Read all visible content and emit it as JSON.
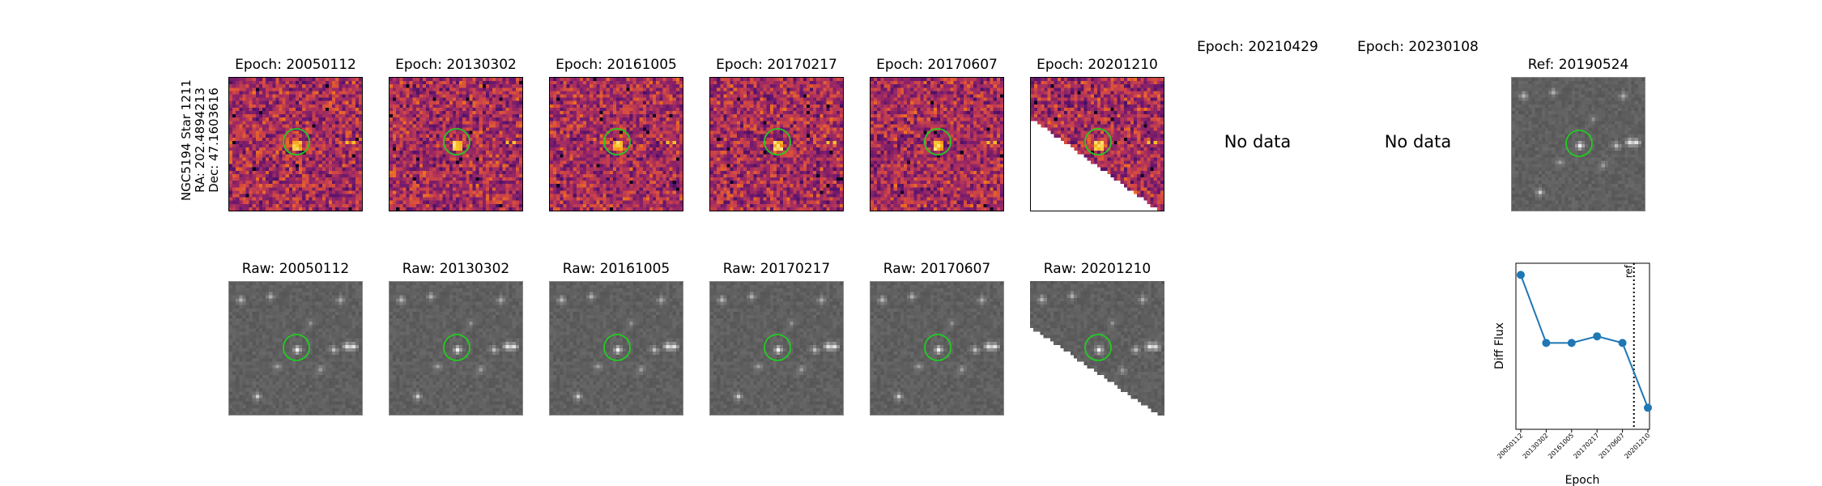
{
  "star": {
    "line1": "NGC5194 Star 1211",
    "line2": "RA: 202.4894213",
    "line3": "Dec: 47.1603616"
  },
  "diff_titles": [
    "Epoch: 20050112",
    "Epoch: 20130302",
    "Epoch: 20161005",
    "Epoch: 20170217",
    "Epoch: 20170607",
    "Epoch: 20201210",
    "Epoch: 20210429",
    "Epoch: 20230108"
  ],
  "raw_titles": [
    "Raw: 20050112",
    "Raw: 20130302",
    "Raw: 20161005",
    "Raw: 20170217",
    "Raw: 20170607",
    "Raw: 20201210"
  ],
  "ref_title": "Ref: 20190524",
  "no_data_text": "No data",
  "colors": {
    "circle": "#22cc22",
    "line": "#1f77b4",
    "diff_cmap": "magma",
    "raw_cmap": "gray"
  },
  "chart_data": {
    "type": "line",
    "xlabel": "Epoch",
    "ylabel": "Diff Flux",
    "categories": [
      "20050112",
      "20130302",
      "20161005",
      "20170217",
      "20170607",
      "20201210"
    ],
    "values": [
      0.93,
      0.52,
      0.52,
      0.56,
      0.52,
      0.13
    ],
    "ylim": [
      0,
      1
    ],
    "ref_marker": {
      "label": "ref",
      "position_between": [
        "20170607",
        "20201210"
      ],
      "x_index": 4.45
    },
    "grid": false
  }
}
